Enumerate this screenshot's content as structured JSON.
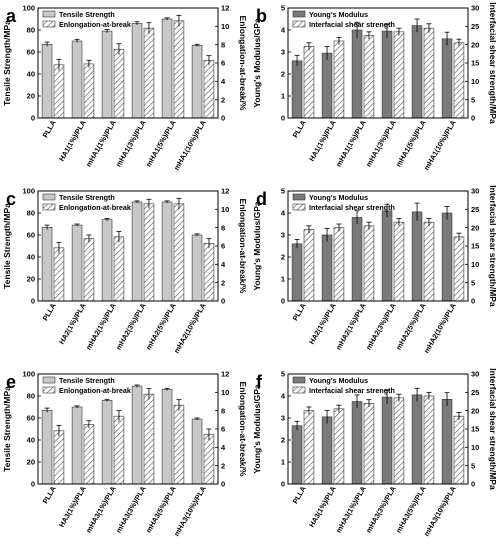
{
  "colors": {
    "ts_bar": "#c8c8c8",
    "ym_bar": "#7a7a7a",
    "hatch_fill": "#ffffff",
    "hatch_line": "#555555",
    "axis": "#000000"
  },
  "chart_data": [
    {
      "type": "bar",
      "panel": "a",
      "categories": [
        "PLLA",
        "HA1(1%)/PLA",
        "mHA1(1%)/PLA",
        "mHA1(3%)/PLA",
        "mHA1(5%)/PLA",
        "mHA1(10%)/PLA"
      ],
      "ylabel_left": "Tensile Strength/MPa",
      "ylabel_right": "Enlongation-at-break/%",
      "ylim_left": [
        0,
        100
      ],
      "ylim_right": [
        0,
        12
      ],
      "yticks_left": [
        "0",
        "20",
        "40",
        "60",
        "80",
        "100"
      ],
      "yticks_right": [
        "0",
        "2",
        "4",
        "6",
        "8",
        "10",
        "12"
      ],
      "series": [
        {
          "name": "Tensile Strength",
          "axis": "left",
          "style": "solid",
          "values": [
            67,
            70,
            79,
            86,
            90,
            66
          ],
          "errors": [
            2,
            1.5,
            1.5,
            1.5,
            1,
            1
          ]
        },
        {
          "name": "Enlongation-at-break",
          "axis": "right",
          "style": "hatched",
          "values": [
            5.8,
            5.9,
            7.5,
            9.8,
            10.6,
            6.3
          ],
          "errors": [
            0.6,
            0.4,
            0.6,
            0.6,
            0.6,
            0.5
          ]
        }
      ]
    },
    {
      "type": "bar",
      "panel": "b",
      "categories": [
        "PLLA",
        "HA1(1%)/PLA",
        "mHA1(1%)/PLA",
        "mHA1(3%)/PLA",
        "mHA1(5%)/PLA",
        "mHA1(10%)/PLA"
      ],
      "ylabel_left": "Young's Modulus/GPa",
      "ylabel_right": "Interfacial shear strength/MPa",
      "ylim_left": [
        0,
        5
      ],
      "ylim_right": [
        0,
        30
      ],
      "yticks_left": [
        "0",
        "1",
        "2",
        "3",
        "4",
        "5"
      ],
      "yticks_right": [
        "0",
        "5",
        "10",
        "15",
        "20",
        "25",
        "30"
      ],
      "series": [
        {
          "name": "Young's Modulus",
          "axis": "left",
          "style": "solid",
          "values": [
            2.6,
            2.95,
            4.0,
            3.95,
            4.2,
            3.6
          ],
          "errors": [
            0.25,
            0.3,
            0.35,
            0.3,
            0.3,
            0.3
          ]
        },
        {
          "name": "Interfacial shear strength",
          "axis": "right",
          "style": "hatched",
          "values": [
            19.5,
            21,
            22.5,
            23.5,
            24.5,
            20.5
          ],
          "errors": [
            1,
            1,
            1,
            1,
            1.2,
            1
          ]
        }
      ]
    },
    {
      "type": "bar",
      "panel": "c",
      "categories": [
        "PLLA",
        "HA2(1%)/PLA",
        "mHA2(1%)/PLA",
        "mHA2(3%)/PLA",
        "mHA2(5%)/PLA",
        "mHA2(10%)/PLA"
      ],
      "ylabel_left": "Tensile Strength/MPa",
      "ylabel_right": "Enlongation-at-break/%",
      "ylim_left": [
        0,
        100
      ],
      "ylim_right": [
        0,
        12
      ],
      "yticks_left": [
        "0",
        "20",
        "40",
        "60",
        "80",
        "100"
      ],
      "yticks_right": [
        "0",
        "2",
        "4",
        "6",
        "8",
        "10",
        "12"
      ],
      "series": [
        {
          "name": "Tensile Strength",
          "axis": "left",
          "style": "solid",
          "values": [
            67,
            69,
            74,
            90,
            90,
            60
          ],
          "errors": [
            2,
            1,
            1,
            1,
            1,
            1
          ]
        },
        {
          "name": "Enlongation-at-break",
          "axis": "right",
          "style": "hatched",
          "values": [
            5.8,
            6.8,
            7.0,
            10.6,
            10.6,
            6.3
          ],
          "errors": [
            0.6,
            0.4,
            0.6,
            0.5,
            0.6,
            0.5
          ]
        }
      ]
    },
    {
      "type": "bar",
      "panel": "d",
      "categories": [
        "PLLA",
        "HA2(1%)/PLA",
        "mHA2(1%)/PLA",
        "mHA2(3%)/PLA",
        "mHA2(5%)/PLA",
        "mHA2(10%)/PLA"
      ],
      "ylabel_left": "Young's Modulus/GPa",
      "ylabel_right": "Interfacial shear strength/MPa",
      "ylim_left": [
        0,
        5
      ],
      "ylim_right": [
        0,
        30
      ],
      "yticks_left": [
        "0",
        "1",
        "2",
        "3",
        "4",
        "5"
      ],
      "yticks_right": [
        "0",
        "5",
        "10",
        "15",
        "20",
        "25",
        "30"
      ],
      "series": [
        {
          "name": "Young's Modulus",
          "axis": "left",
          "style": "solid",
          "values": [
            2.6,
            3.0,
            3.8,
            4.1,
            4.05,
            4.0
          ],
          "errors": [
            0.2,
            0.3,
            0.3,
            0.3,
            0.4,
            0.3
          ]
        },
        {
          "name": "Interfacial shear strength",
          "axis": "right",
          "style": "hatched",
          "values": [
            19.5,
            20,
            20.5,
            21.5,
            21.5,
            17.5
          ],
          "errors": [
            1,
            1,
            1,
            1,
            1,
            1
          ]
        }
      ]
    },
    {
      "type": "bar",
      "panel": "e",
      "categories": [
        "PLLA",
        "HA3(1%)/PLA",
        "mHA3(1%)/PLA",
        "mHA3(3%)/PLA",
        "mHA3(5%)/PLA",
        "mHA3(10%)/PLA"
      ],
      "ylabel_left": "Tensile Strength/MPa",
      "ylabel_right": "Enlongation-at-break/%",
      "ylim_left": [
        0,
        100
      ],
      "ylim_right": [
        0,
        12
      ],
      "yticks_left": [
        "0",
        "20",
        "40",
        "60",
        "80",
        "100"
      ],
      "yticks_right": [
        "0",
        "2",
        "4",
        "6",
        "8",
        "10",
        "12"
      ],
      "series": [
        {
          "name": "Tensile Strength",
          "axis": "left",
          "style": "solid",
          "values": [
            67,
            70,
            76,
            89,
            86,
            59
          ],
          "errors": [
            2,
            1,
            1,
            1,
            1,
            1
          ]
        },
        {
          "name": "Enlongation-at-break",
          "axis": "right",
          "style": "hatched",
          "values": [
            5.8,
            6.5,
            7.4,
            9.8,
            8.6,
            5.4
          ],
          "errors": [
            0.6,
            0.4,
            0.6,
            0.6,
            0.6,
            0.6
          ]
        }
      ]
    },
    {
      "type": "bar",
      "panel": "f",
      "categories": [
        "PLLA",
        "HA3(1%)/PLA",
        "mHA3(1%)/PLA",
        "mHA3(3%)/PLA",
        "mHA3(5%)/PLA",
        "mHA3(10%)/PLA"
      ],
      "ylabel_left": "Young's Modulus/GPa",
      "ylabel_right": "Interfacial shear strength/MPa",
      "ylim_left": [
        0,
        5
      ],
      "ylim_right": [
        0,
        30
      ],
      "yticks_left": [
        "0",
        "1",
        "2",
        "3",
        "4",
        "5"
      ],
      "yticks_right": [
        "0",
        "5",
        "10",
        "15",
        "20",
        "25",
        "30"
      ],
      "series": [
        {
          "name": "Young's Modulus",
          "axis": "left",
          "style": "solid",
          "values": [
            2.65,
            3.05,
            3.75,
            3.95,
            4.05,
            3.85
          ],
          "errors": [
            0.2,
            0.3,
            0.3,
            0.3,
            0.3,
            0.3
          ]
        },
        {
          "name": "Interfacial shear strength",
          "axis": "right",
          "style": "hatched",
          "values": [
            20,
            20.5,
            22,
            23.5,
            24,
            18.5
          ],
          "errors": [
            1,
            1,
            1,
            1,
            1,
            1
          ]
        }
      ]
    }
  ]
}
